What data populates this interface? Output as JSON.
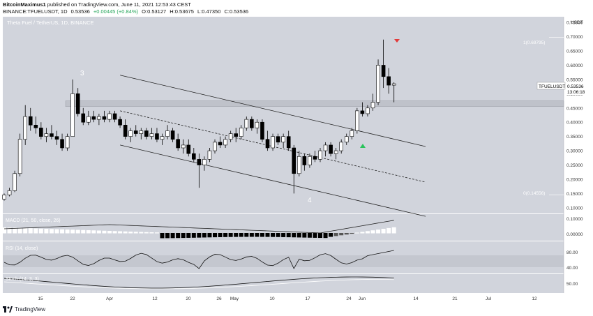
{
  "header": {
    "author": "BitcoinMaximus1",
    "published_line": "published on TradingView.com, June 11, 2021 12:53:43 CEST",
    "symbol_line": "BINANCE:TFUELUSDT, 1D",
    "price": "0.53536",
    "change": "+0.00445 (+0.84%)",
    "open": "O:0.53127",
    "high": "H:0.53675",
    "low": "L:0.47350",
    "close": "C:0.53536"
  },
  "chart_title": "Theta Fuel / TetherUS, 1D, BINANCE",
  "price_axis": {
    "unit": "USDT",
    "ticks": [
      "0.75000",
      "0.70000",
      "0.65000",
      "0.60000",
      "0.55000",
      "0.50000",
      "0.45000",
      "0.40000",
      "0.35000",
      "0.30000",
      "0.25000",
      "0.20000",
      "0.15000",
      "0.10000"
    ],
    "symbol_tag": "TFUELUSDT",
    "last_price": "0.53536",
    "countdown": "13:06:18"
  },
  "fib_labels": {
    "one": "1(0.69795)",
    "zero": "0(0.14556)"
  },
  "wave_labels": {
    "three": "3",
    "four": "4"
  },
  "macd": {
    "label": "MACD (21, 50, close, 26)",
    "ticks": [
      "0.10000",
      "0.00000"
    ]
  },
  "rsi": {
    "label": "RSI (14, close)",
    "ticks": [
      "80.00",
      "40.00"
    ]
  },
  "stoch": {
    "label": "Stoch (14, 3, 3)",
    "ticks": [
      "50.00"
    ]
  },
  "x_axis": {
    "ticks": [
      "15",
      "22",
      "Apr",
      "12",
      "20",
      "26",
      "May",
      "10",
      "17",
      "24",
      "Jun",
      "14",
      "21",
      "Jul",
      "12"
    ]
  },
  "footer": {
    "brand": "TradingView"
  },
  "colors": {
    "panel_bg": "#d1d4dc",
    "up": "#ffffff",
    "down": "#000000",
    "signal_down": "#e23b3b",
    "signal_up": "#29c35b"
  },
  "chart_data": {
    "type": "candlestick",
    "title": "Theta Fuel / TetherUS, 1D, BINANCE",
    "ylabel": "USDT",
    "ylim": [
      0.08,
      0.77
    ],
    "xticks": [
      "15",
      "22",
      "Apr",
      "12",
      "20",
      "26",
      "May",
      "10",
      "17",
      "24",
      "Jun",
      "14",
      "21",
      "Jul",
      "12"
    ],
    "ohlc": [
      [
        0.13,
        0.15,
        0.125,
        0.145
      ],
      [
        0.145,
        0.17,
        0.14,
        0.16
      ],
      [
        0.16,
        0.23,
        0.155,
        0.22
      ],
      [
        0.22,
        0.36,
        0.21,
        0.34
      ],
      [
        0.34,
        0.46,
        0.32,
        0.42
      ],
      [
        0.42,
        0.45,
        0.37,
        0.39
      ],
      [
        0.39,
        0.42,
        0.36,
        0.38
      ],
      [
        0.38,
        0.4,
        0.34,
        0.35
      ],
      [
        0.35,
        0.38,
        0.33,
        0.36
      ],
      [
        0.36,
        0.39,
        0.34,
        0.35
      ],
      [
        0.35,
        0.37,
        0.32,
        0.34
      ],
      [
        0.34,
        0.36,
        0.3,
        0.31
      ],
      [
        0.31,
        0.36,
        0.3,
        0.35
      ],
      [
        0.35,
        0.55,
        0.35,
        0.5
      ],
      [
        0.5,
        0.52,
        0.42,
        0.43
      ],
      [
        0.43,
        0.45,
        0.39,
        0.4
      ],
      [
        0.4,
        0.44,
        0.39,
        0.42
      ],
      [
        0.42,
        0.44,
        0.4,
        0.41
      ],
      [
        0.41,
        0.43,
        0.39,
        0.42
      ],
      [
        0.42,
        0.44,
        0.4,
        0.41
      ],
      [
        0.41,
        0.44,
        0.4,
        0.43
      ],
      [
        0.43,
        0.44,
        0.4,
        0.41
      ],
      [
        0.41,
        0.42,
        0.38,
        0.39
      ],
      [
        0.39,
        0.41,
        0.34,
        0.35
      ],
      [
        0.35,
        0.38,
        0.33,
        0.37
      ],
      [
        0.37,
        0.39,
        0.35,
        0.36
      ],
      [
        0.36,
        0.38,
        0.34,
        0.37
      ],
      [
        0.37,
        0.38,
        0.34,
        0.35
      ],
      [
        0.35,
        0.38,
        0.34,
        0.36
      ],
      [
        0.36,
        0.38,
        0.33,
        0.34
      ],
      [
        0.34,
        0.36,
        0.32,
        0.35
      ],
      [
        0.35,
        0.39,
        0.34,
        0.37
      ],
      [
        0.37,
        0.38,
        0.33,
        0.34
      ],
      [
        0.34,
        0.36,
        0.3,
        0.31
      ],
      [
        0.31,
        0.34,
        0.29,
        0.32
      ],
      [
        0.32,
        0.34,
        0.28,
        0.29
      ],
      [
        0.29,
        0.31,
        0.26,
        0.27
      ],
      [
        0.27,
        0.29,
        0.17,
        0.25
      ],
      [
        0.25,
        0.28,
        0.23,
        0.27
      ],
      [
        0.27,
        0.31,
        0.26,
        0.3
      ],
      [
        0.3,
        0.34,
        0.29,
        0.33
      ],
      [
        0.33,
        0.35,
        0.31,
        0.32
      ],
      [
        0.32,
        0.35,
        0.31,
        0.34
      ],
      [
        0.34,
        0.37,
        0.33,
        0.36
      ],
      [
        0.36,
        0.38,
        0.33,
        0.35
      ],
      [
        0.35,
        0.39,
        0.34,
        0.38
      ],
      [
        0.38,
        0.42,
        0.37,
        0.41
      ],
      [
        0.41,
        0.42,
        0.37,
        0.38
      ],
      [
        0.38,
        0.41,
        0.36,
        0.4
      ],
      [
        0.4,
        0.41,
        0.33,
        0.34
      ],
      [
        0.34,
        0.37,
        0.3,
        0.31
      ],
      [
        0.31,
        0.36,
        0.3,
        0.35
      ],
      [
        0.35,
        0.36,
        0.32,
        0.33
      ],
      [
        0.33,
        0.36,
        0.31,
        0.35
      ],
      [
        0.35,
        0.37,
        0.3,
        0.31
      ],
      [
        0.31,
        0.32,
        0.15,
        0.22
      ],
      [
        0.22,
        0.3,
        0.21,
        0.28
      ],
      [
        0.28,
        0.29,
        0.23,
        0.25
      ],
      [
        0.25,
        0.29,
        0.24,
        0.28
      ],
      [
        0.28,
        0.3,
        0.26,
        0.27
      ],
      [
        0.27,
        0.31,
        0.26,
        0.3
      ],
      [
        0.3,
        0.33,
        0.28,
        0.32
      ],
      [
        0.32,
        0.33,
        0.28,
        0.29
      ],
      [
        0.29,
        0.31,
        0.27,
        0.3
      ],
      [
        0.3,
        0.34,
        0.29,
        0.33
      ],
      [
        0.33,
        0.36,
        0.32,
        0.35
      ],
      [
        0.35,
        0.38,
        0.34,
        0.37
      ],
      [
        0.37,
        0.45,
        0.36,
        0.44
      ],
      [
        0.44,
        0.47,
        0.42,
        0.43
      ],
      [
        0.43,
        0.46,
        0.42,
        0.45
      ],
      [
        0.45,
        0.5,
        0.44,
        0.47
      ],
      [
        0.47,
        0.62,
        0.46,
        0.6
      ],
      [
        0.6,
        0.69,
        0.52,
        0.56
      ],
      [
        0.56,
        0.59,
        0.5,
        0.53
      ],
      [
        0.53,
        0.54,
        0.47,
        0.535
      ]
    ],
    "lines": [
      {
        "name": "channel-upper",
        "points": [
          [
            22,
            0.565
          ],
          [
            80,
            0.315
          ]
        ]
      },
      {
        "name": "channel-mid",
        "points": [
          [
            22,
            0.44
          ],
          [
            80,
            0.19
          ]
        ]
      },
      {
        "name": "channel-lower",
        "points": [
          [
            22,
            0.32
          ],
          [
            80,
            0.07
          ]
        ]
      }
    ],
    "support_zone": [
      0.455,
      0.475
    ],
    "fib_levels": [
      0.69795,
      0.14556
    ]
  }
}
